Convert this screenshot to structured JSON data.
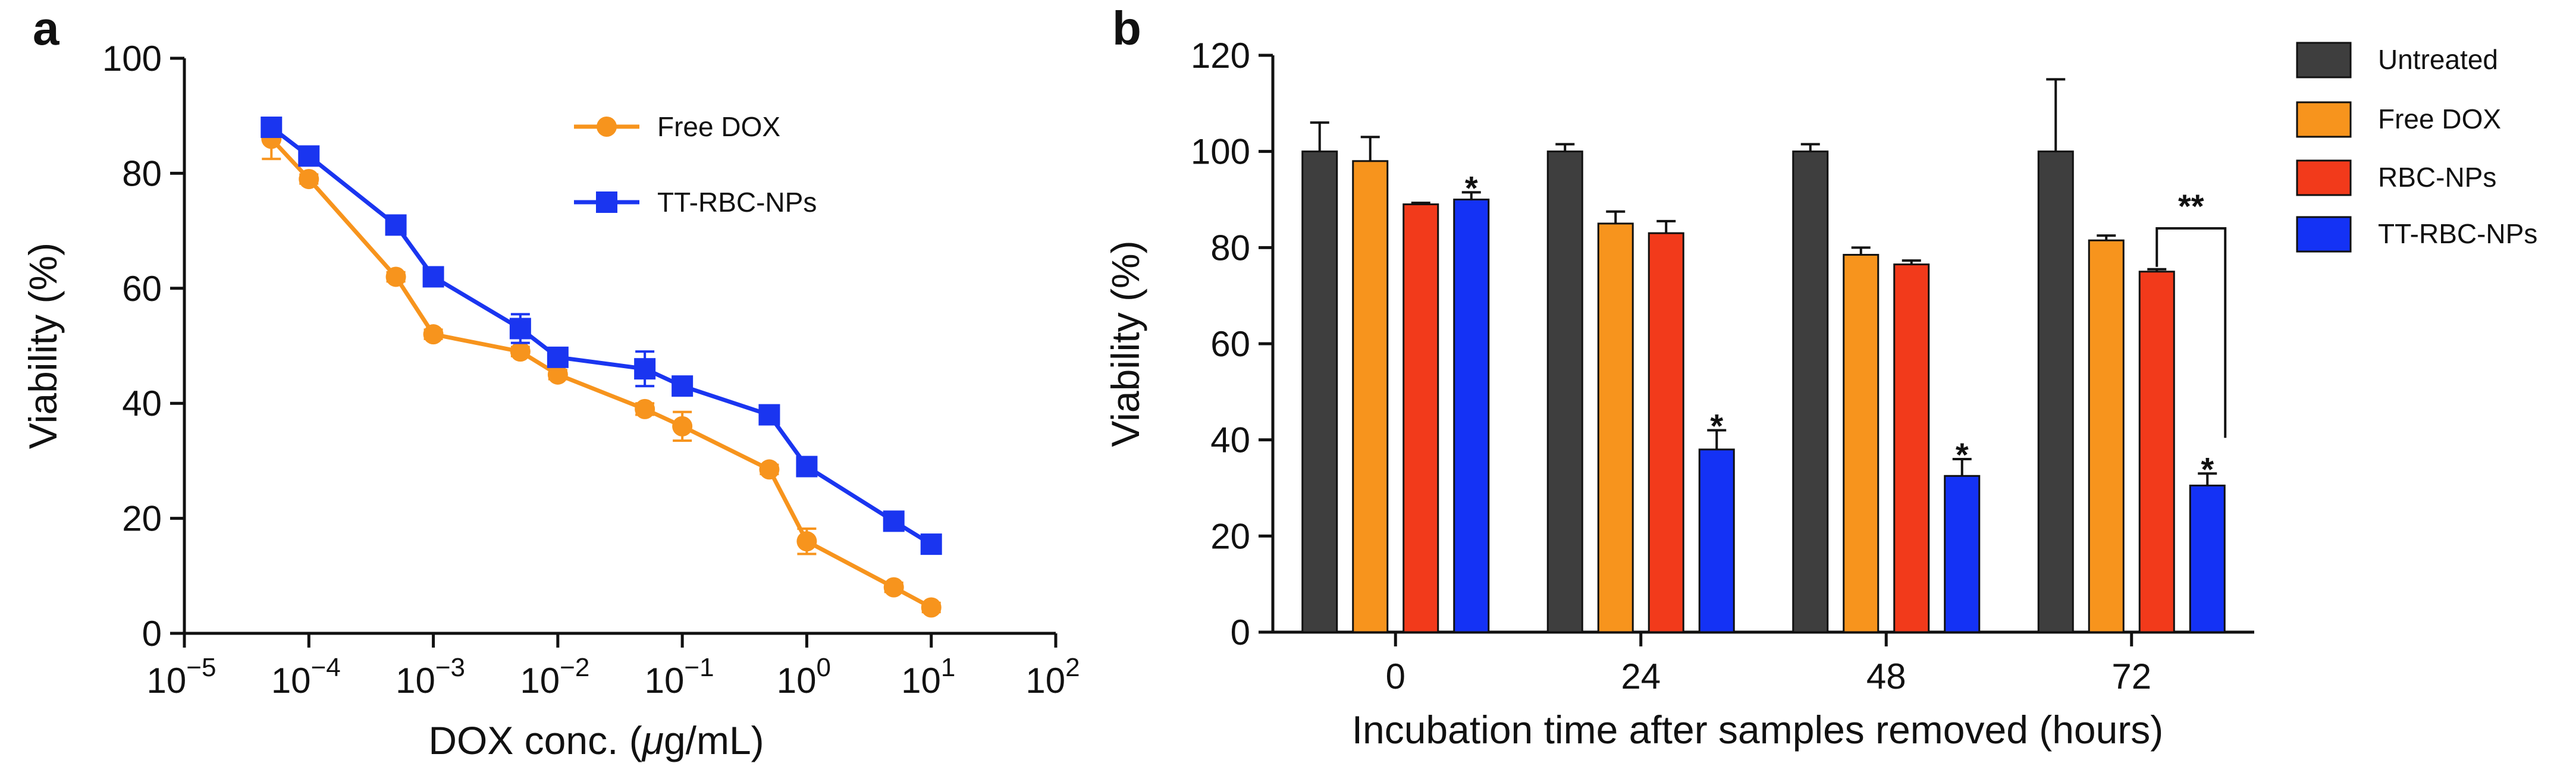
{
  "colors": {
    "axis": "#111111",
    "free_dox": "#F7941D",
    "tt_rbc_nps": "#1A35F0",
    "untreated": "#3E3E3E",
    "rbc_nps": "#F23A1B",
    "tt_rbc_nps_bar": "#1432F5"
  },
  "chart_data": [
    {
      "panel": "a",
      "type": "line",
      "xscale": "log",
      "xlim": [
        1e-05,
        100
      ],
      "ylim": [
        0,
        100
      ],
      "xlabel_pre": "DOX conc. (",
      "xlabel_mu": "μ",
      "xlabel_post": "g/mL)",
      "ylabel": "Viability (%)",
      "x_ticks": [
        {
          "base": "10",
          "exp": "−5",
          "value": 1e-05
        },
        {
          "base": "10",
          "exp": "−4",
          "value": 0.0001
        },
        {
          "base": "10",
          "exp": "−3",
          "value": 0.001
        },
        {
          "base": "10",
          "exp": "−2",
          "value": 0.01
        },
        {
          "base": "10",
          "exp": "−1",
          "value": 0.1
        },
        {
          "base": "10",
          "exp": "0",
          "value": 1
        },
        {
          "base": "10",
          "exp": "1",
          "value": 10
        },
        {
          "base": "10",
          "exp": "2",
          "value": 100
        }
      ],
      "y_ticks": [
        "0",
        "20",
        "40",
        "60",
        "80",
        "100"
      ],
      "series": [
        {
          "name": "Free DOX",
          "color_key": "free_dox",
          "marker": "circle",
          "x": [
            5e-05,
            0.0001,
            0.0005,
            0.001,
            0.005,
            0.01,
            0.05,
            0.1,
            0.5,
            1,
            5,
            10
          ],
          "y": [
            86,
            79,
            62,
            52,
            49,
            45,
            39,
            36,
            28.5,
            16,
            8,
            4.5
          ],
          "err": [
            3.5,
            0.8,
            0.8,
            0.8,
            0.8,
            0.8,
            1,
            2.5,
            0.8,
            2.2,
            0.8,
            0.8
          ]
        },
        {
          "name": "TT-RBC-NPs",
          "color_key": "tt_rbc_nps",
          "marker": "square",
          "x": [
            5e-05,
            0.0001,
            0.0005,
            0.001,
            0.005,
            0.01,
            0.05,
            0.1,
            0.5,
            1,
            5,
            10
          ],
          "y": [
            88,
            83,
            71,
            62,
            53,
            48,
            46,
            43,
            38,
            29,
            19.5,
            15.5
          ],
          "err": [
            1.5,
            1.5,
            1,
            1,
            2.5,
            1,
            3,
            1,
            1,
            1,
            1,
            1
          ]
        }
      ]
    },
    {
      "panel": "b",
      "type": "bar",
      "categories": [
        "0",
        "24",
        "48",
        "72"
      ],
      "xlabel": "Incubation time after samples removed (hours)",
      "ylabel": "Viability (%)",
      "ylim": [
        0,
        120
      ],
      "y_ticks": [
        "0",
        "20",
        "40",
        "60",
        "80",
        "100",
        "120"
      ],
      "series": [
        {
          "name": "Untreated",
          "color_key": "untreated",
          "values": [
            100,
            100,
            100,
            100
          ],
          "err": [
            6,
            1.5,
            1.5,
            15
          ]
        },
        {
          "name": "Free DOX",
          "color_key": "free_dox",
          "values": [
            98,
            85,
            78.5,
            81.5
          ],
          "err": [
            5,
            2.5,
            1.5,
            1
          ]
        },
        {
          "name": "RBC-NPs",
          "color_key": "rbc_nps",
          "values": [
            89,
            83,
            76.5,
            75
          ],
          "err": [
            0.3,
            2.5,
            0.8,
            0.5
          ]
        },
        {
          "name": "TT-RBC-NPs",
          "color_key": "tt_rbc_nps_bar",
          "values": [
            90,
            38,
            32.5,
            30.5
          ],
          "err": [
            1.5,
            4,
            3.5,
            2.5
          ]
        }
      ],
      "significance": [
        {
          "label": "*",
          "category": 0,
          "series": 3
        },
        {
          "label": "*",
          "category": 1,
          "series": 3
        },
        {
          "label": "*",
          "category": 2,
          "series": 3
        },
        {
          "label": "*",
          "category": 3,
          "series": 3
        }
      ],
      "bracket": {
        "label": "**",
        "category": 3,
        "from_series": 2,
        "to_series": 3,
        "level": 84
      }
    }
  ],
  "panel_labels": {
    "a": "a",
    "b": "b"
  }
}
